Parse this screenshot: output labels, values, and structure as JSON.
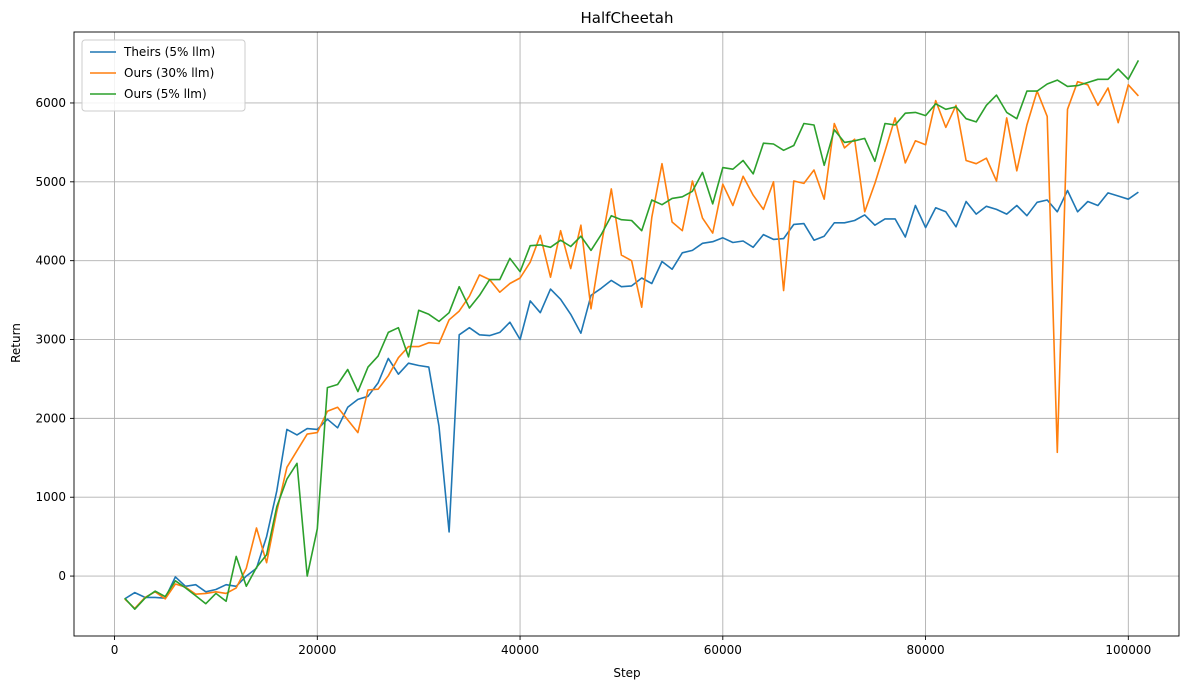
{
  "chart_data": {
    "type": "line",
    "title": "HalfCheetah",
    "xlabel": "Step",
    "ylabel": "Return",
    "xlim": [
      -4000,
      105000
    ],
    "ylim": [
      -760,
      6900
    ],
    "xticks": [
      0,
      20000,
      40000,
      60000,
      80000,
      100000
    ],
    "xtick_labels": [
      "0",
      "20000",
      "40000",
      "60000",
      "80000",
      "100000"
    ],
    "yticks": [
      0,
      1000,
      2000,
      3000,
      4000,
      5000,
      6000
    ],
    "ytick_labels": [
      "0",
      "1000",
      "2000",
      "3000",
      "4000",
      "5000",
      "6000"
    ],
    "grid": true,
    "legend_position": "top-left",
    "x": [
      1000,
      2000,
      3000,
      4000,
      5000,
      6000,
      7000,
      8000,
      9000,
      10000,
      11000,
      12000,
      13000,
      14000,
      15000,
      16000,
      17000,
      18000,
      19000,
      20000,
      21000,
      22000,
      23000,
      24000,
      25000,
      26000,
      27000,
      28000,
      29000,
      30000,
      31000,
      32000,
      33000,
      34000,
      35000,
      36000,
      37000,
      38000,
      39000,
      40000,
      41000,
      42000,
      43000,
      44000,
      45000,
      46000,
      47000,
      48000,
      49000,
      50000,
      51000,
      52000,
      53000,
      54000,
      55000,
      56000,
      57000,
      58000,
      59000,
      60000,
      61000,
      62000,
      63000,
      64000,
      65000,
      66000,
      67000,
      68000,
      69000,
      70000,
      71000,
      72000,
      73000,
      74000,
      75000,
      76000,
      77000,
      78000,
      79000,
      80000,
      81000,
      82000,
      83000,
      84000,
      85000,
      86000,
      87000,
      88000,
      89000,
      90000,
      91000,
      92000,
      93000,
      94000,
      95000,
      96000,
      97000,
      98000,
      99000,
      100000,
      101000
    ],
    "series": [
      {
        "name": "Theirs (5% llm)",
        "color": "#1f77b4",
        "values": [
          -290,
          -210,
          -270,
          -270,
          -280,
          -10,
          -130,
          -110,
          -200,
          -170,
          -110,
          -130,
          0,
          100,
          500,
          1080,
          1860,
          1790,
          1870,
          1860,
          1990,
          1880,
          2140,
          2240,
          2280,
          2450,
          2760,
          2560,
          2700,
          2670,
          2650,
          1900,
          560,
          3060,
          3150,
          3060,
          3050,
          3090,
          3220,
          3000,
          3490,
          3340,
          3640,
          3510,
          3320,
          3080,
          3560,
          3650,
          3750,
          3670,
          3680,
          3780,
          3710,
          3990,
          3890,
          4100,
          4130,
          4220,
          4240,
          4290,
          4230,
          4250,
          4170,
          4330,
          4270,
          4280,
          4460,
          4470,
          4260,
          4310,
          4480,
          4480,
          4510,
          4580,
          4450,
          4530,
          4530,
          4300,
          4700,
          4420,
          4670,
          4620,
          4430,
          4750,
          4590,
          4690,
          4650,
          4590,
          4700,
          4570,
          4740,
          4770,
          4620,
          4890,
          4620,
          4750,
          4700,
          4860,
          4820,
          4780,
          4870
        ]
      },
      {
        "name": "Ours (30% llm)",
        "color": "#ff7f0e",
        "values": [
          -290,
          -410,
          -270,
          -200,
          -290,
          -100,
          -140,
          -230,
          -220,
          -200,
          -220,
          -150,
          100,
          610,
          170,
          820,
          1380,
          1590,
          1800,
          1820,
          2090,
          2140,
          1980,
          1820,
          2360,
          2370,
          2540,
          2770,
          2910,
          2910,
          2960,
          2950,
          3250,
          3360,
          3550,
          3820,
          3760,
          3600,
          3710,
          3780,
          3980,
          4320,
          3790,
          4380,
          3900,
          4450,
          3390,
          4190,
          4910,
          4070,
          4000,
          3410,
          4550,
          5230,
          4490,
          4380,
          5010,
          4540,
          4350,
          4970,
          4700,
          5070,
          4830,
          4650,
          5000,
          3620,
          5010,
          4980,
          5150,
          4780,
          5740,
          5430,
          5540,
          4620,
          4980,
          5390,
          5810,
          5240,
          5520,
          5470,
          6030,
          5690,
          5970,
          5270,
          5230,
          5300,
          5010,
          5810,
          5140,
          5720,
          6150,
          5830,
          1570,
          5920,
          6270,
          6230,
          5970,
          6190,
          5750,
          6230,
          6090
        ]
      },
      {
        "name": "Ours (5% llm)",
        "color": "#2ca02c",
        "values": [
          -280,
          -420,
          -280,
          -190,
          -260,
          -60,
          -150,
          -250,
          -350,
          -220,
          -320,
          250,
          -130,
          110,
          270,
          880,
          1230,
          1430,
          0,
          600,
          2390,
          2430,
          2620,
          2340,
          2650,
          2790,
          3090,
          3150,
          2780,
          3370,
          3320,
          3230,
          3340,
          3670,
          3400,
          3560,
          3760,
          3760,
          4030,
          3860,
          4190,
          4200,
          4170,
          4260,
          4180,
          4310,
          4130,
          4330,
          4570,
          4520,
          4510,
          4380,
          4770,
          4710,
          4790,
          4810,
          4880,
          5120,
          4720,
          5180,
          5160,
          5270,
          5100,
          5490,
          5480,
          5400,
          5460,
          5740,
          5720,
          5210,
          5660,
          5500,
          5520,
          5550,
          5260,
          5740,
          5720,
          5870,
          5880,
          5840,
          5990,
          5920,
          5950,
          5800,
          5760,
          5970,
          6100,
          5880,
          5800,
          6150,
          6150,
          6240,
          6290,
          6210,
          6220,
          6260,
          6300,
          6300,
          6430,
          6300,
          6540
        ]
      }
    ]
  }
}
